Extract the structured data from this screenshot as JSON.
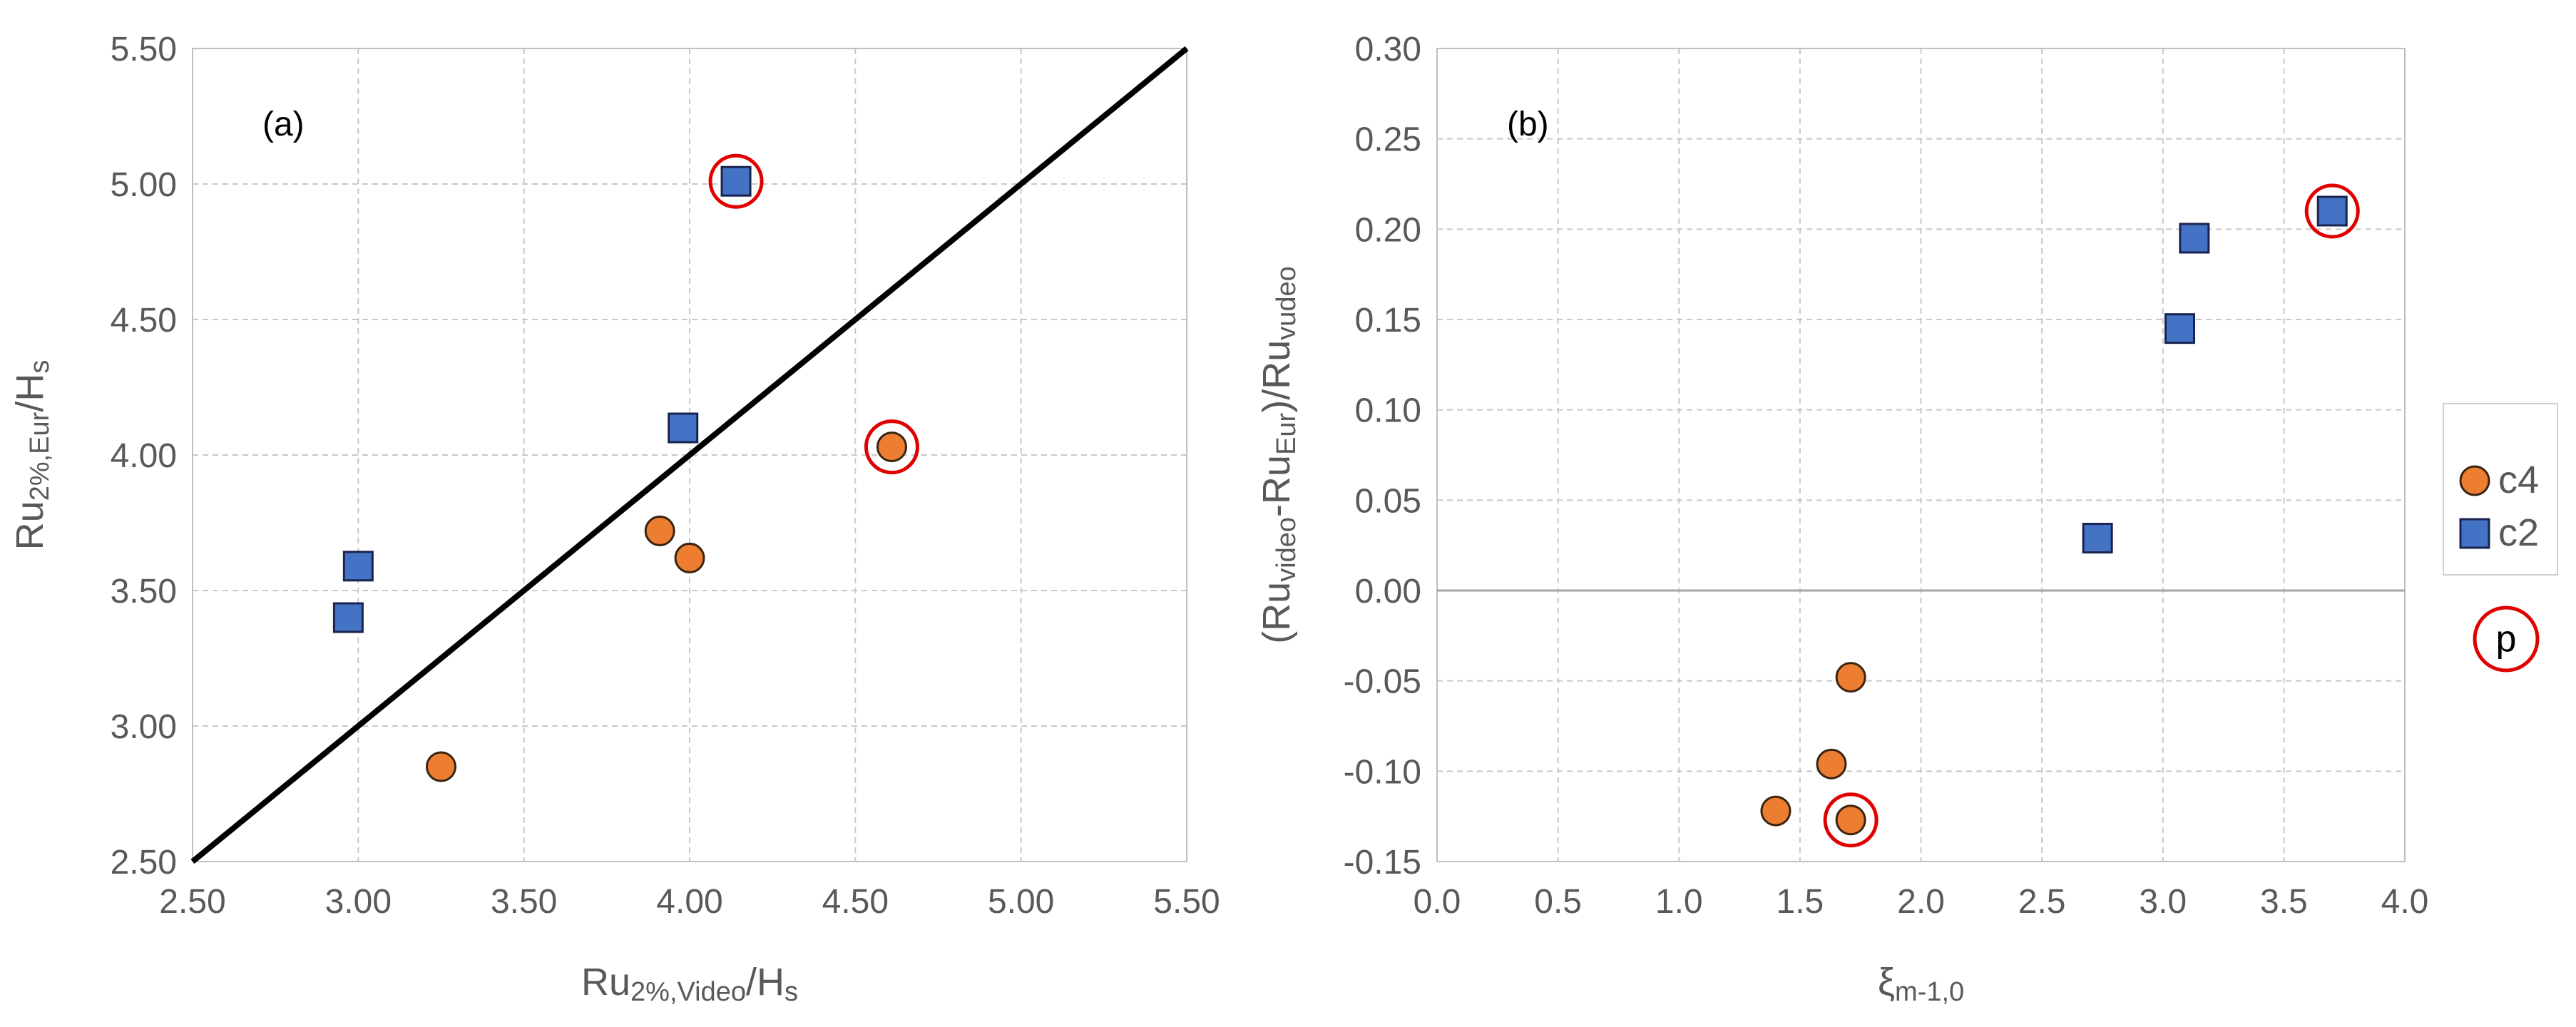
{
  "chart_data": [
    {
      "type": "scatter",
      "panel_label": "(a)",
      "xlabel": {
        "main": "Ru",
        "sub": "2%,Video",
        "tail": "/H",
        "tail_sub": "s"
      },
      "ylabel": {
        "main": "Ru",
        "sub": "2%,Eur",
        "tail": "/H",
        "tail_sub": "s"
      },
      "xlim": [
        2.5,
        5.5
      ],
      "ylim": [
        2.5,
        5.5
      ],
      "xticks": [
        "2.50",
        "3.00",
        "3.50",
        "4.00",
        "4.50",
        "5.00",
        "5.50"
      ],
      "yticks": [
        "2.50",
        "3.00",
        "3.50",
        "4.00",
        "4.50",
        "5.00",
        "5.50"
      ],
      "grid": true,
      "reference_line": {
        "x": [
          2.5,
          5.5
        ],
        "y": [
          2.5,
          5.5
        ],
        "color": "#000000"
      },
      "series": [
        {
          "name": "c4",
          "marker": "circle",
          "color": "#ED7D31",
          "points": [
            [
              3.25,
              2.85
            ],
            [
              3.91,
              3.72
            ],
            [
              4.0,
              3.62
            ],
            [
              4.61,
              4.03
            ]
          ]
        },
        {
          "name": "c2",
          "marker": "square",
          "color": "#4472C4",
          "points": [
            [
              2.97,
              3.4
            ],
            [
              3.0,
              3.59
            ],
            [
              3.98,
              4.1
            ],
            [
              4.14,
              5.01
            ]
          ]
        },
        {
          "name": "p",
          "marker": "ring",
          "color": "#E00000",
          "points": [
            [
              4.14,
              5.01
            ],
            [
              4.61,
              4.03
            ]
          ]
        }
      ]
    },
    {
      "type": "scatter",
      "panel_label": "(b)",
      "xlabel": {
        "main": "ξ",
        "sub": "m-1,0"
      },
      "ylabel": {
        "parts": [
          "(Ru",
          "video",
          "-Ru",
          "Eur",
          ")/Ru",
          "vudeo"
        ]
      },
      "xlim": [
        0.0,
        4.0
      ],
      "ylim": [
        -0.15,
        0.3
      ],
      "xticks": [
        "0.0",
        "0.5",
        "1.0",
        "1.5",
        "2.0",
        "2.5",
        "3.0",
        "3.5",
        "4.0"
      ],
      "yticks": [
        "-0.15",
        "-0.10",
        "-0.05",
        "0.00",
        "0.05",
        "0.10",
        "0.15",
        "0.20",
        "0.25",
        "0.30"
      ],
      "grid": true,
      "zero_line": true,
      "series": [
        {
          "name": "c4",
          "marker": "circle",
          "color": "#ED7D31",
          "points": [
            [
              1.4,
              -0.122
            ],
            [
              1.63,
              -0.096
            ],
            [
              1.71,
              -0.048
            ],
            [
              1.71,
              -0.127
            ]
          ]
        },
        {
          "name": "c2",
          "marker": "square",
          "color": "#4472C4",
          "points": [
            [
              2.73,
              0.029
            ],
            [
              3.07,
              0.145
            ],
            [
              3.13,
              0.195
            ],
            [
              3.7,
              0.21
            ]
          ]
        },
        {
          "name": "p",
          "marker": "ring",
          "color": "#E00000",
          "points": [
            [
              1.71,
              -0.127
            ],
            [
              3.7,
              0.21
            ]
          ]
        }
      ]
    }
  ],
  "legend": {
    "placement": "right",
    "items": [
      {
        "label": "c4",
        "marker": "circle",
        "color": "#ED7D31"
      },
      {
        "label": "c2",
        "marker": "square",
        "color": "#4472C4"
      },
      {
        "label": "p",
        "marker": "ring",
        "color": "#E00000"
      }
    ]
  }
}
